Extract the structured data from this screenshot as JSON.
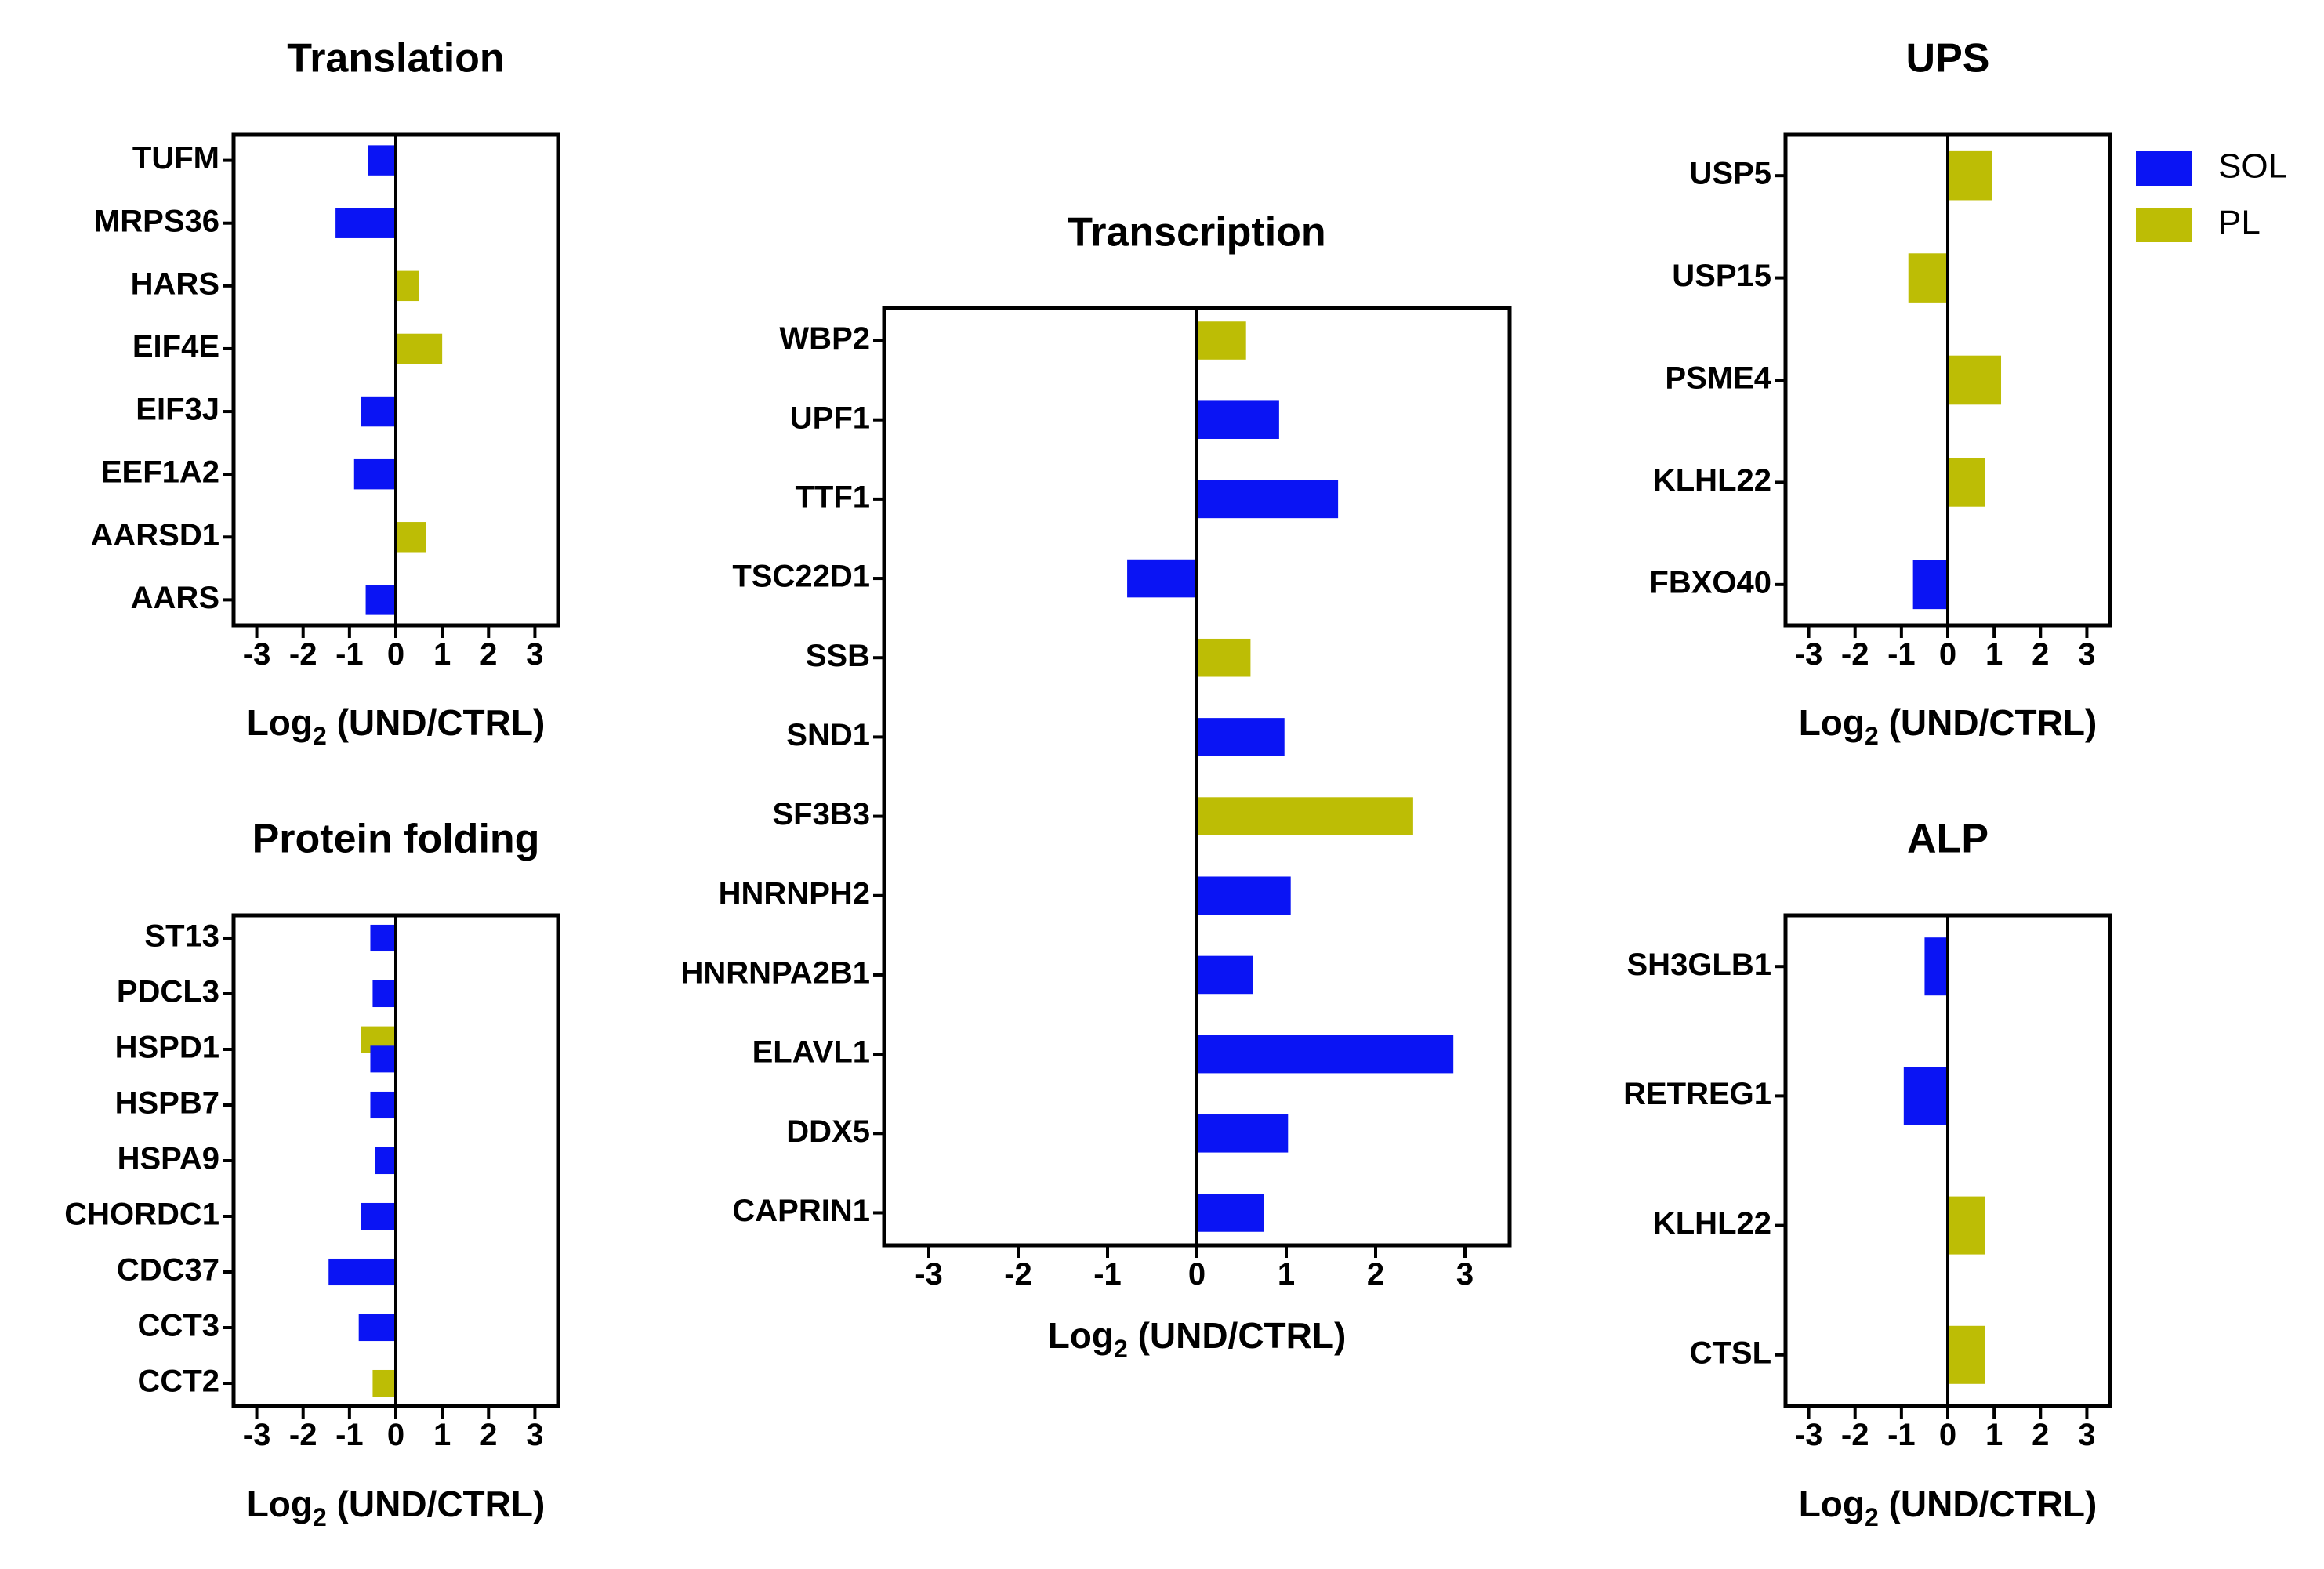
{
  "colors": {
    "SOL": "#0a14f4",
    "PL": "#bdbd05"
  },
  "legend": [
    {
      "name": "SOL",
      "color": "#0a14f4"
    },
    {
      "name": "PL",
      "color": "#bdbd05"
    }
  ],
  "chart_data": [
    {
      "id": "translation",
      "type": "bar",
      "orientation": "horizontal",
      "title": "Translation",
      "xlabel_main": "Log",
      "xlabel_sub": "2",
      "xlabel_rest": " (UND/CTRL)",
      "xlim": [
        -3.5,
        3.5
      ],
      "xticks": [
        "-3",
        "-2",
        "-1",
        "0",
        "1",
        "2",
        "3"
      ],
      "bars": [
        {
          "label": "TUFM",
          "series": "SOL",
          "value": -0.6
        },
        {
          "label": "MRPS36",
          "series": "SOL",
          "value": -1.3
        },
        {
          "label": "HARS",
          "series": "PL",
          "value": 0.5
        },
        {
          "label": "EIF4E",
          "series": "PL",
          "value": 1.0
        },
        {
          "label": "EIF3J",
          "series": "SOL",
          "value": -0.75
        },
        {
          "label": "EEF1A2",
          "series": "SOL",
          "value": -0.9
        },
        {
          "label": "AARSD1",
          "series": "PL",
          "value": 0.65
        },
        {
          "label": "AARS",
          "series": "SOL",
          "value": -0.65
        }
      ]
    },
    {
      "id": "protein-folding",
      "type": "bar",
      "orientation": "horizontal",
      "title": "Protein folding",
      "xlabel_main": "Log",
      "xlabel_sub": "2",
      "xlabel_rest": " (UND/CTRL)",
      "xlim": [
        -3.5,
        3.5
      ],
      "xticks": [
        "-3",
        "-2",
        "-1",
        "0",
        "1",
        "2",
        "3"
      ],
      "bars": [
        {
          "label": "ST13",
          "series": "SOL",
          "value": -0.55
        },
        {
          "label": "PDCL3",
          "series": "SOL",
          "value": -0.5
        },
        {
          "label": "HSPD1",
          "series": "PL",
          "value": -0.75,
          "offset": -0.25,
          "showLabel": true
        },
        {
          "label": "HSPD1",
          "series": "SOL",
          "value": -0.55,
          "offset": 0.25,
          "showLabel": false
        },
        {
          "label": "HSPB7",
          "series": "SOL",
          "value": -0.55
        },
        {
          "label": "HSPA9",
          "series": "SOL",
          "value": -0.45
        },
        {
          "label": "CHORDC1",
          "series": "SOL",
          "value": -0.75
        },
        {
          "label": "CDC37",
          "series": "SOL",
          "value": -1.45
        },
        {
          "label": "CCT3",
          "series": "SOL",
          "value": -0.8
        },
        {
          "label": "CCT2",
          "series": "PL",
          "value": -0.5
        }
      ]
    },
    {
      "id": "transcription",
      "type": "bar",
      "orientation": "horizontal",
      "title": "Transcription",
      "xlabel_main": "Log",
      "xlabel_sub": "2",
      "xlabel_rest": " (UND/CTRL)",
      "xlim": [
        -3.5,
        3.5
      ],
      "xticks": [
        "-3",
        "-2",
        "-1",
        "0",
        "1",
        "2",
        "3"
      ],
      "bars": [
        {
          "label": "WBP2",
          "series": "PL",
          "value": 0.55
        },
        {
          "label": "UPF1",
          "series": "SOL",
          "value": 0.92
        },
        {
          "label": "TTF1",
          "series": "SOL",
          "value": 1.58
        },
        {
          "label": "TSC22D1",
          "series": "SOL",
          "value": -0.78
        },
        {
          "label": "SSB",
          "series": "PL",
          "value": 0.6
        },
        {
          "label": "SND1",
          "series": "SOL",
          "value": 0.98
        },
        {
          "label": "SF3B3",
          "series": "PL",
          "value": 2.42
        },
        {
          "label": "HNRNPH2",
          "series": "SOL",
          "value": 1.05
        },
        {
          "label": "HNRNPA2B1",
          "series": "SOL",
          "value": 0.63
        },
        {
          "label": "ELAVL1",
          "series": "SOL",
          "value": 2.87
        },
        {
          "label": "DDX5",
          "series": "SOL",
          "value": 1.02
        },
        {
          "label": "CAPRIN1",
          "series": "SOL",
          "value": 0.75
        }
      ]
    },
    {
      "id": "ups",
      "type": "bar",
      "orientation": "horizontal",
      "title": "UPS",
      "xlabel_main": "Log",
      "xlabel_sub": "2",
      "xlabel_rest": " (UND/CTRL)",
      "xlim": [
        -3.5,
        3.5
      ],
      "xticks": [
        "-3",
        "-2",
        "-1",
        "0",
        "1",
        "2",
        "3"
      ],
      "bars": [
        {
          "label": "USP5",
          "series": "PL",
          "value": 0.95
        },
        {
          "label": "USP15",
          "series": "PL",
          "value": -0.85
        },
        {
          "label": "PSME4",
          "series": "PL",
          "value": 1.15
        },
        {
          "label": "KLHL22",
          "series": "PL",
          "value": 0.8
        },
        {
          "label": "FBXO40",
          "series": "SOL",
          "value": -0.75
        }
      ]
    },
    {
      "id": "alp",
      "type": "bar",
      "orientation": "horizontal",
      "title": "ALP",
      "xlabel_main": "Log",
      "xlabel_sub": "2",
      "xlabel_rest": " (UND/CTRL)",
      "xlim": [
        -3.5,
        3.5
      ],
      "xticks": [
        "-3",
        "-2",
        "-1",
        "0",
        "1",
        "2",
        "3"
      ],
      "bars": [
        {
          "label": "SH3GLB1",
          "series": "SOL",
          "value": -0.5
        },
        {
          "label": "RETREG1",
          "series": "SOL",
          "value": -0.95
        },
        {
          "label": "KLHL22",
          "series": "PL",
          "value": 0.8
        },
        {
          "label": "CTSL",
          "series": "PL",
          "value": 0.8
        }
      ]
    }
  ]
}
